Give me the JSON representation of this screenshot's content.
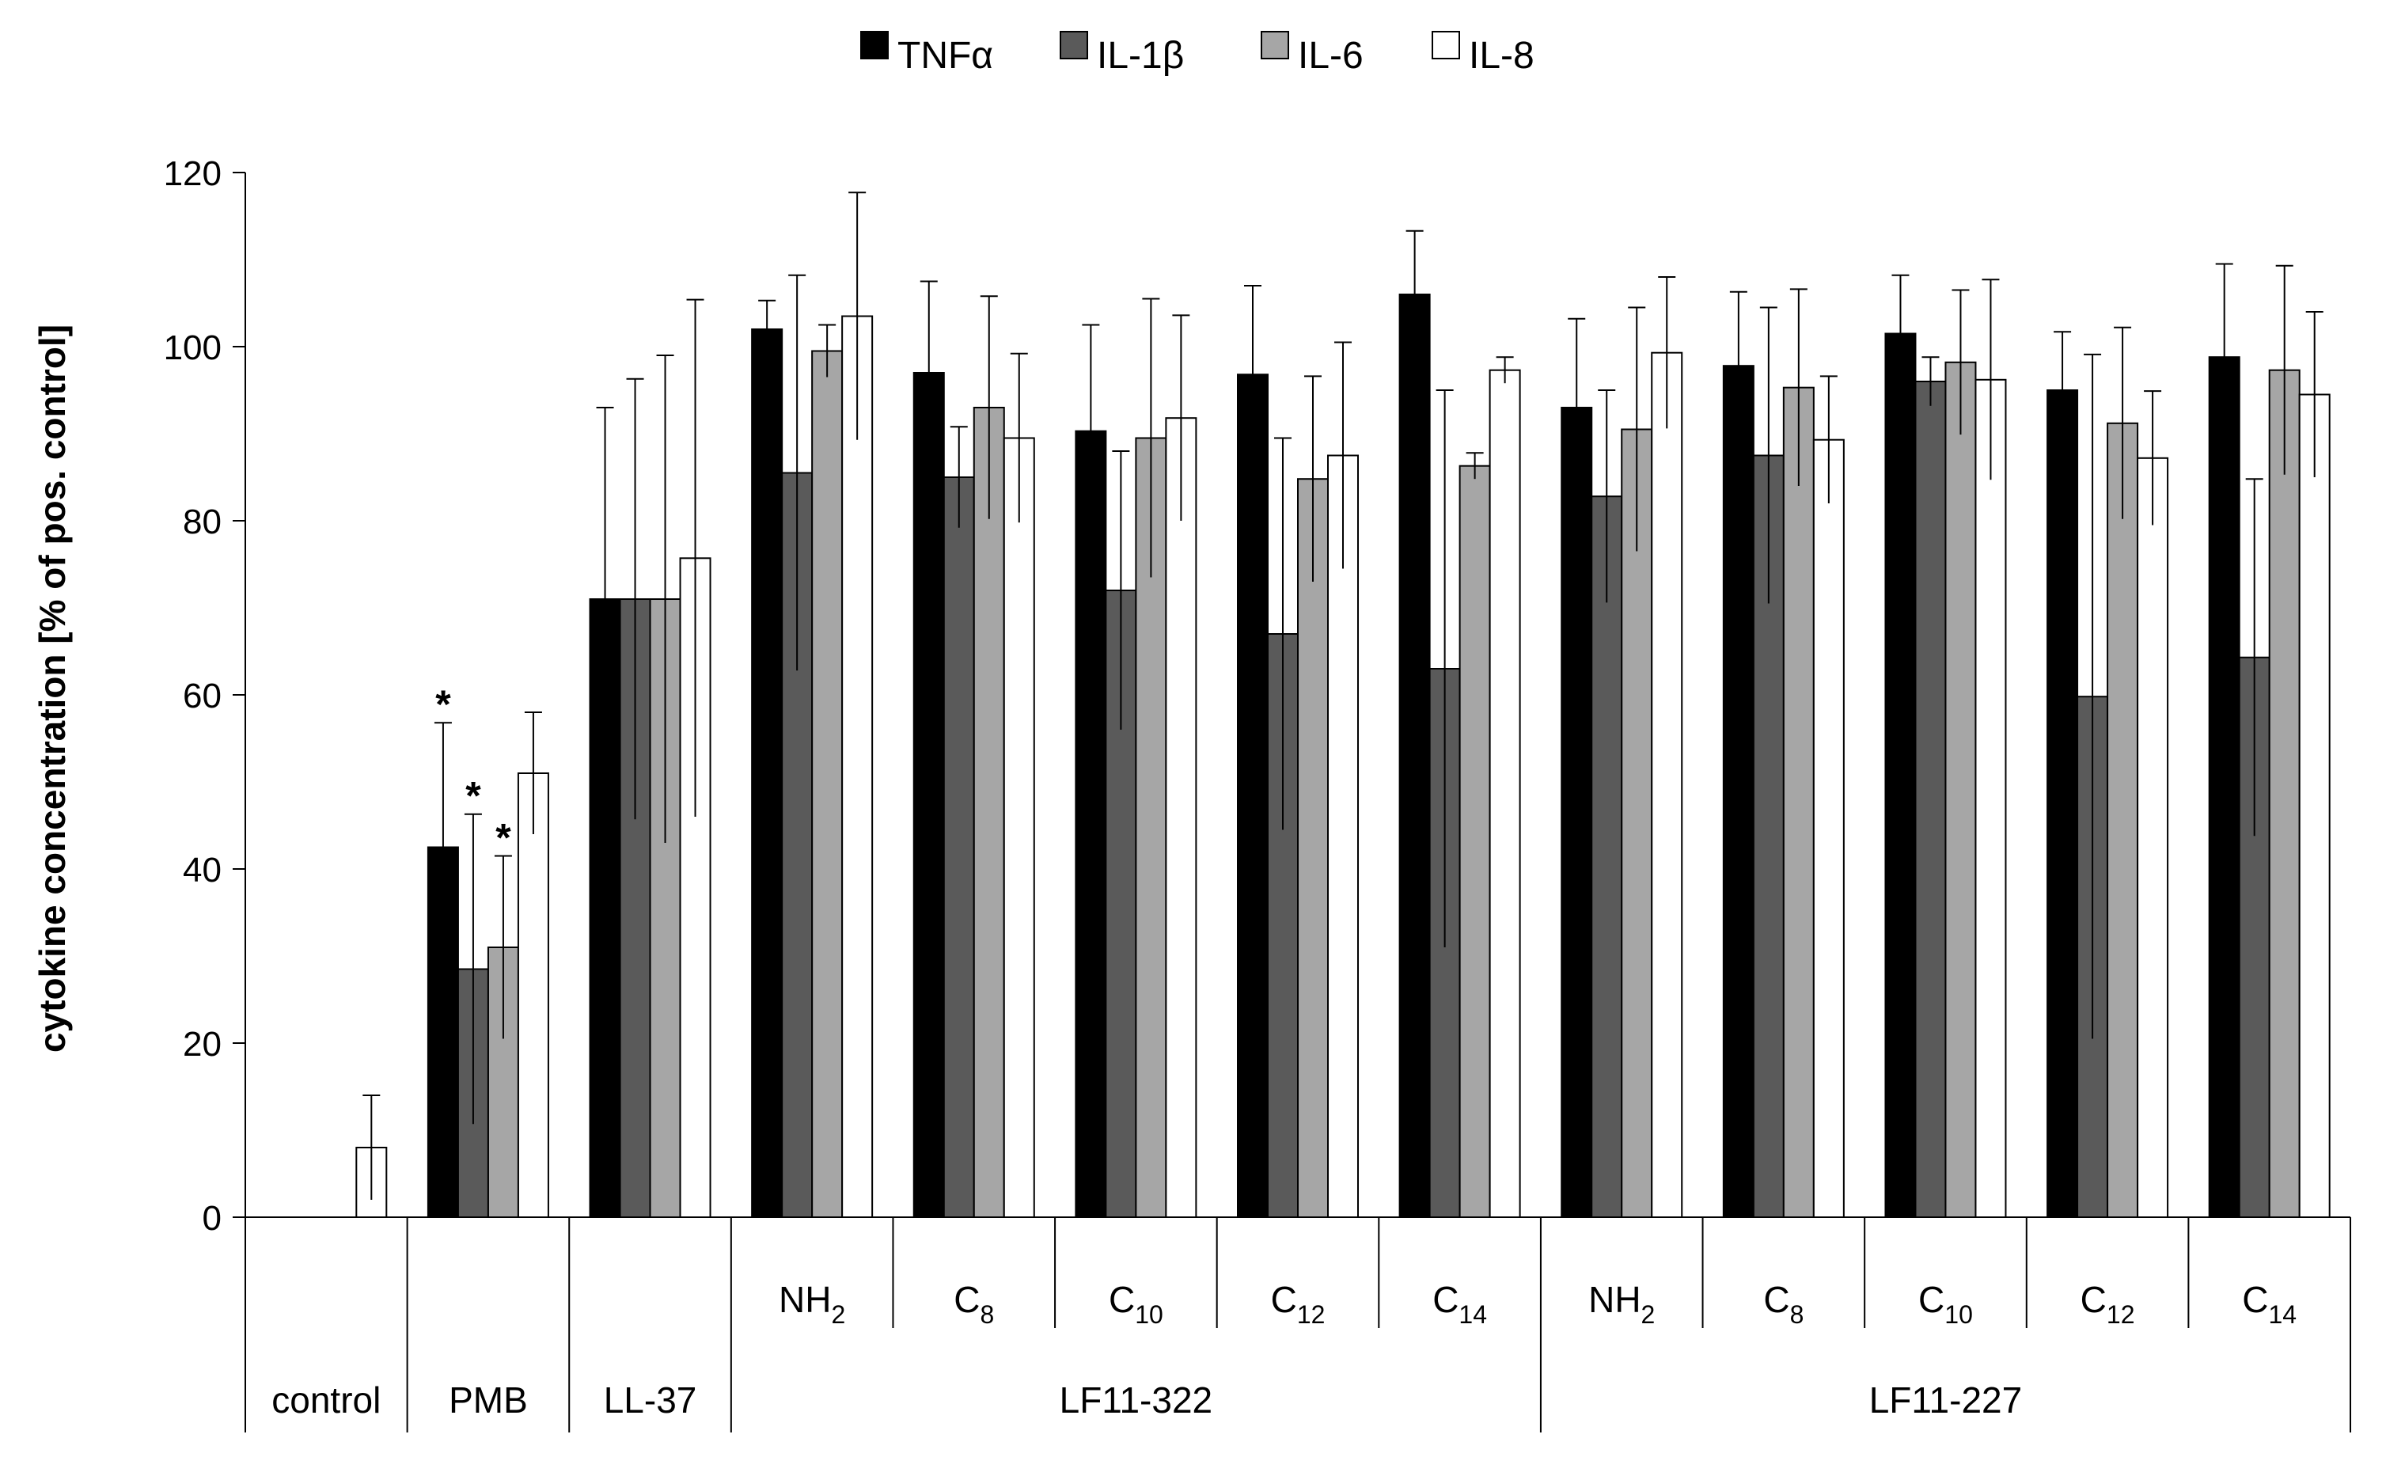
{
  "chart_data": {
    "type": "bar",
    "ylabel": "cytokine concentration [% of pos. control]",
    "ylim": [
      0,
      120
    ],
    "yticks": [
      0,
      20,
      40,
      60,
      80,
      100,
      120
    ],
    "legend_position": "top-center",
    "categories": [
      {
        "label": "control",
        "sub": ""
      },
      {
        "label": "PMB",
        "sub": ""
      },
      {
        "label": "LL-37",
        "sub": ""
      },
      {
        "label": "NH",
        "sub": "2"
      },
      {
        "label": "C",
        "sub": "8"
      },
      {
        "label": "C",
        "sub": "10"
      },
      {
        "label": "C",
        "sub": "12"
      },
      {
        "label": "C",
        "sub": "14"
      },
      {
        "label": "NH",
        "sub": "2"
      },
      {
        "label": "C",
        "sub": "8"
      },
      {
        "label": "C",
        "sub": "10"
      },
      {
        "label": "C",
        "sub": "12"
      },
      {
        "label": "C",
        "sub": "14"
      }
    ],
    "groups": [
      {
        "label": "LF11-322",
        "from": 3,
        "to": 7
      },
      {
        "label": "LF11-227",
        "from": 8,
        "to": 12
      }
    ],
    "series": [
      {
        "name": "TNFα",
        "color": "#000000",
        "values": [
          null,
          42.5,
          71,
          102,
          97,
          90.3,
          96.8,
          106,
          93,
          97.8,
          101.5,
          95,
          98.8
        ],
        "errors": [
          null,
          14.3,
          22,
          3.3,
          10.5,
          12.2,
          10.2,
          7.3,
          10.2,
          8.5,
          6.7,
          6.7,
          10.7
        ]
      },
      {
        "name": "IL-1β",
        "color": "#5a5a5a",
        "values": [
          null,
          28.5,
          71,
          85.5,
          85,
          72,
          67,
          63,
          82.8,
          87.5,
          96,
          59.8,
          64.3
        ],
        "errors": [
          null,
          17.8,
          25.3,
          22.7,
          5.8,
          16,
          22.5,
          32,
          12.2,
          17,
          2.8,
          39.3,
          20.5
        ]
      },
      {
        "name": "IL-6",
        "color": "#a6a6a6",
        "values": [
          null,
          31,
          71,
          99.5,
          93,
          89.5,
          84.8,
          86.3,
          90.5,
          95.3,
          98.2,
          91.2,
          97.3
        ],
        "errors": [
          null,
          10.5,
          28,
          3,
          12.8,
          16,
          11.8,
          1.5,
          14,
          11.3,
          8.3,
          11,
          12
        ]
      },
      {
        "name": "IL-8",
        "color": "#ffffff",
        "values": [
          8,
          51,
          75.7,
          103.5,
          89.5,
          91.8,
          87.5,
          97.3,
          99.3,
          89.3,
          96.2,
          87.2,
          94.5
        ],
        "errors": [
          6,
          7,
          29.7,
          14.2,
          9.7,
          11.8,
          13,
          1.5,
          8.7,
          7.3,
          11.5,
          7.7,
          9.5
        ]
      }
    ],
    "significance": [
      {
        "category": 1,
        "series": 0,
        "label": "*"
      },
      {
        "category": 1,
        "series": 1,
        "label": "*"
      },
      {
        "category": 1,
        "series": 2,
        "label": "*"
      }
    ]
  }
}
